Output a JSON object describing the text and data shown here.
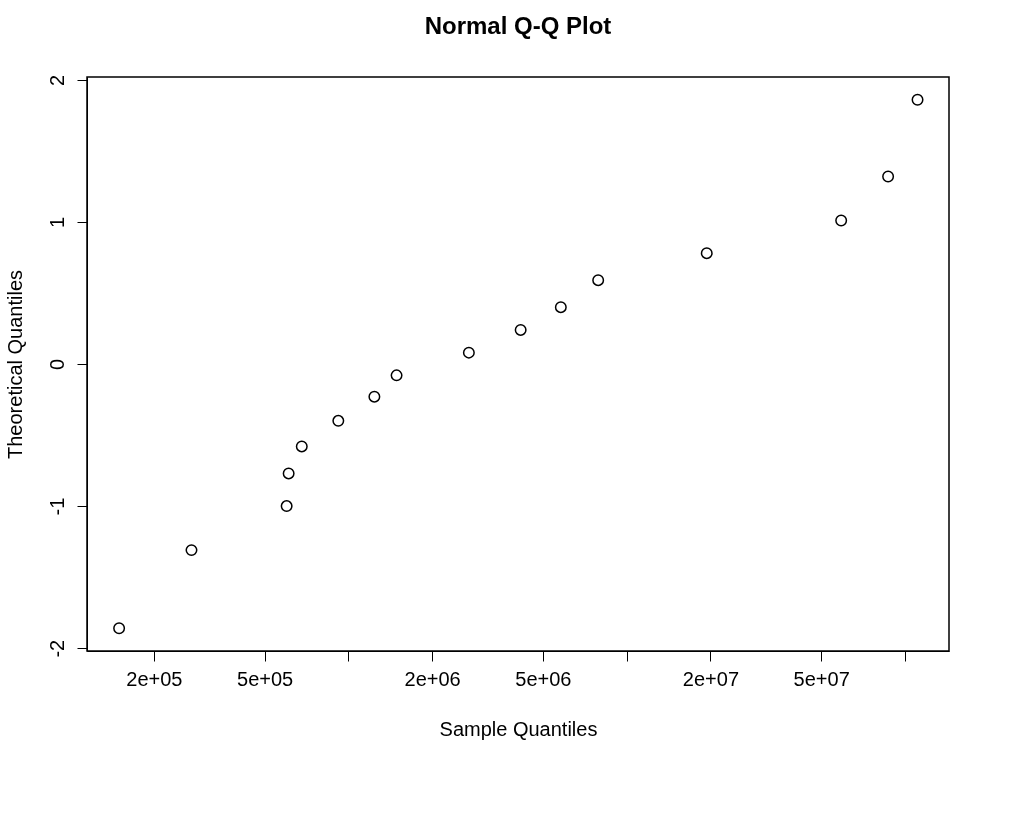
{
  "chart_data": {
    "type": "scatter",
    "title": "Normal Q-Q Plot",
    "xlabel": "Sample Quantiles",
    "ylabel": "Theoretical Quantiles",
    "x": [
      150000,
      273000,
      600000,
      610000,
      680000,
      920000,
      1240000,
      1490000,
      2710000,
      4160000,
      5800000,
      7900000,
      19400000,
      59000000,
      87000000,
      111000000
    ],
    "values": [
      -1.86,
      -1.31,
      -1.0,
      -0.77,
      -0.58,
      -0.4,
      -0.23,
      -0.08,
      0.08,
      0.24,
      0.4,
      0.59,
      0.78,
      1.01,
      1.32,
      1.86
    ],
    "color": "#000000",
    "marker": "circle",
    "log": "x",
    "grid": false,
    "xlim": [
      115000,
      144000000
    ],
    "ylim": [
      -2.02,
      2.02
    ],
    "xticks": [
      {
        "value": 200000,
        "label": "2e+05"
      },
      {
        "value": 500000,
        "label": "5e+05"
      },
      {
        "value": 1000000,
        "label": null
      },
      {
        "value": 2000000,
        "label": "2e+06"
      },
      {
        "value": 5000000,
        "label": "5e+06"
      },
      {
        "value": 10000000,
        "label": null
      },
      {
        "value": 20000000,
        "label": "2e+07"
      },
      {
        "value": 50000000,
        "label": "5e+07"
      },
      {
        "value": 100000000,
        "label": null
      }
    ],
    "yticks": [
      -2,
      -1,
      0,
      1,
      2
    ]
  }
}
